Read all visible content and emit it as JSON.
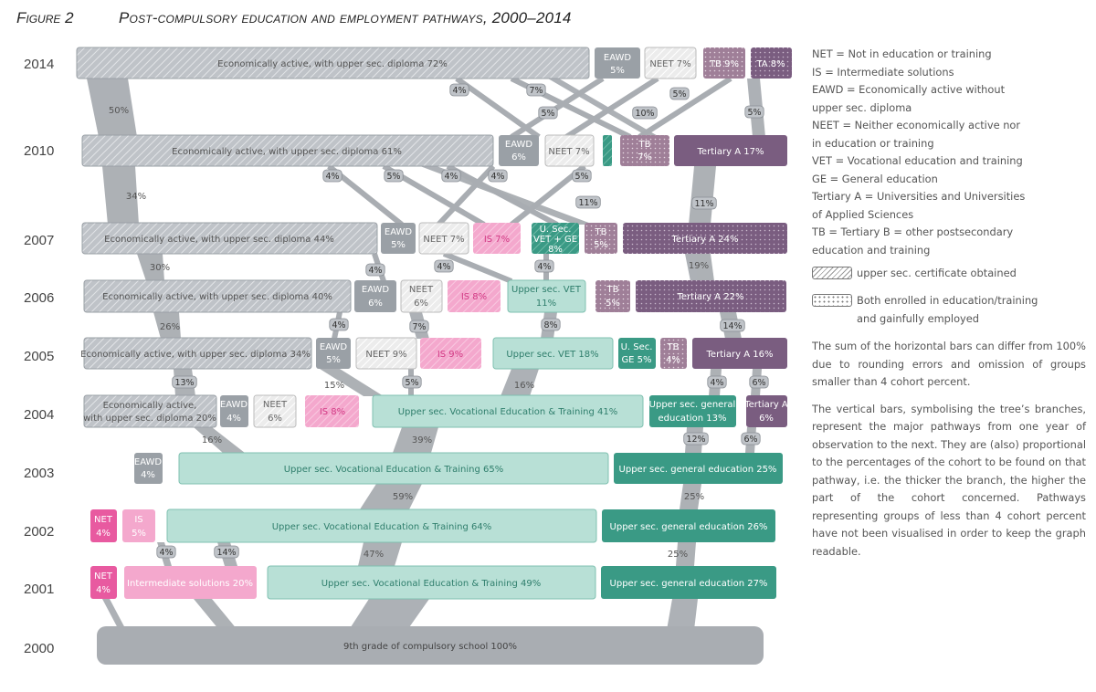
{
  "figure": {
    "label": "Figure 2",
    "title": "Post-compulsory education and employment pathways, 2000–2014"
  },
  "colors": {
    "grey_bar": "#b8bcc2",
    "grey_dark": "#9aa0a6",
    "branch": "#a9adb2",
    "neet": "#e7e7e7",
    "is_pink": "#f4a8cd",
    "net_pink": "#e85aa0",
    "vet_mint": "#b8e0d6",
    "ge_teal": "#3a9a85",
    "tertiary_purple": "#7a5d80",
    "tb_mauve": "#9f7f98"
  },
  "years": [
    "2014",
    "2010",
    "2007",
    "2006",
    "2005",
    "2004",
    "2003",
    "2002",
    "2001",
    "2000"
  ],
  "rows": {
    "y2014": [
      {
        "id": "ea14",
        "label": "Economically active, with upper sec. diploma 72%",
        "kind": "ea"
      },
      {
        "id": "eawd14",
        "label": "EAWD",
        "label2": "5%",
        "kind": "eawd"
      },
      {
        "id": "neet14",
        "label": "NEET 7%",
        "kind": "neet"
      },
      {
        "id": "tb14",
        "label": "TB 9%",
        "kind": "tb"
      },
      {
        "id": "ta14",
        "label": "TA 8%",
        "kind": "ta"
      }
    ],
    "y2010": [
      {
        "id": "ea10",
        "label": "Economically active, with upper sec. diploma 61%",
        "kind": "ea"
      },
      {
        "id": "eawd10",
        "label": "EAWD",
        "label2": "6%",
        "kind": "eawd"
      },
      {
        "id": "neet10",
        "label": "NEET 7%",
        "kind": "neet"
      },
      {
        "id": "small10",
        "label": "",
        "kind": "mint-hatch"
      },
      {
        "id": "tb10",
        "label": "TB",
        "label2": "7%",
        "kind": "tb"
      },
      {
        "id": "ta10",
        "label": "Tertiary A 17%",
        "kind": "ta"
      }
    ],
    "y2007": [
      {
        "id": "ea07",
        "label": "Economically active, with upper sec. diploma 44%",
        "kind": "ea"
      },
      {
        "id": "eawd07",
        "label": "EAWD",
        "label2": "5%",
        "kind": "eawd"
      },
      {
        "id": "neet07",
        "label": "NEET 7%",
        "kind": "neet"
      },
      {
        "id": "is07",
        "label": "IS 7%",
        "kind": "is"
      },
      {
        "id": "usec07",
        "label": "U. Sec.",
        "label2": "VET + GE",
        "label3": "8%",
        "kind": "ge-hatch"
      },
      {
        "id": "tb07",
        "label": "TB",
        "label2": "5%",
        "kind": "tb"
      },
      {
        "id": "ta07",
        "label": "Tertiary A 24%",
        "kind": "ta"
      }
    ],
    "y2006": [
      {
        "id": "ea06",
        "label": "Economically active, with upper sec. diploma 40%",
        "kind": "ea"
      },
      {
        "id": "eawd06",
        "label": "EAWD",
        "label2": "6%",
        "kind": "eawd"
      },
      {
        "id": "neet06",
        "label": "NEET",
        "label2": "6%",
        "kind": "neet"
      },
      {
        "id": "is06",
        "label": "IS 8%",
        "kind": "is"
      },
      {
        "id": "vet06",
        "label": "Upper sec. VET",
        "label2": "11%",
        "kind": "vet"
      },
      {
        "id": "tb06",
        "label": "TB",
        "label2": "5%",
        "kind": "tb"
      },
      {
        "id": "ta06",
        "label": "Tertiary A 22%",
        "kind": "ta"
      }
    ],
    "y2005": [
      {
        "id": "ea05",
        "label": "Economically active, with upper sec. diploma 34%",
        "kind": "ea"
      },
      {
        "id": "eawd05",
        "label": "EAWD",
        "label2": "5%",
        "kind": "eawd"
      },
      {
        "id": "neet05",
        "label": "NEET 9%",
        "kind": "neet"
      },
      {
        "id": "is05",
        "label": "IS 9%",
        "kind": "is"
      },
      {
        "id": "vet05",
        "label": "Upper sec. VET 18%",
        "kind": "vet"
      },
      {
        "id": "ge05",
        "label": "U. Sec.",
        "label2": "GE 5%",
        "kind": "ge"
      },
      {
        "id": "tb05",
        "label": "TB",
        "label2": "4%",
        "kind": "tb"
      },
      {
        "id": "ta05",
        "label": "Tertiary A 16%",
        "kind": "ta"
      }
    ],
    "y2004": [
      {
        "id": "ea04",
        "label": "Economically active,",
        "label2": "with upper sec. diploma 20%",
        "kind": "ea"
      },
      {
        "id": "eawd04",
        "label": "EAWD",
        "label2": "4%",
        "kind": "eawd"
      },
      {
        "id": "neet04",
        "label": "NEET",
        "label2": "6%",
        "kind": "neet"
      },
      {
        "id": "is04",
        "label": "IS 8%",
        "kind": "is"
      },
      {
        "id": "vet04",
        "label": "Upper sec. Vocational Education & Training 41%",
        "kind": "vet"
      },
      {
        "id": "ge04",
        "label": "Upper sec. general",
        "label2": "education 13%",
        "kind": "ge"
      },
      {
        "id": "ta04",
        "label": "Tertiary A",
        "label2": "6%",
        "kind": "ta"
      }
    ],
    "y2003": [
      {
        "id": "eawd03",
        "label": "EAWD",
        "label2": "4%",
        "kind": "eawd"
      },
      {
        "id": "vet03",
        "label": "Upper sec. Vocational Education & Training 65%",
        "kind": "vet"
      },
      {
        "id": "ge03",
        "label": "Upper sec. general education 25%",
        "kind": "ge"
      }
    ],
    "y2002": [
      {
        "id": "net02",
        "label": "NET",
        "label2": "4%",
        "kind": "net"
      },
      {
        "id": "is02",
        "label": "IS",
        "label2": "5%",
        "kind": "is"
      },
      {
        "id": "vet02",
        "label": "Upper sec. Vocational Education & Training 64%",
        "kind": "vet"
      },
      {
        "id": "ge02",
        "label": "Upper sec. general education 26%",
        "kind": "ge"
      }
    ],
    "y2001": [
      {
        "id": "net01",
        "label": "NET",
        "label2": "4%",
        "kind": "net"
      },
      {
        "id": "is01",
        "label": "Intermediate solutions 20%",
        "kind": "is"
      },
      {
        "id": "vet01",
        "label": "Upper sec. Vocational Education & Training 49%",
        "kind": "vet"
      },
      {
        "id": "ge01",
        "label": "Upper sec. general education 27%",
        "kind": "ge"
      }
    ],
    "y2000": [
      {
        "id": "base00",
        "label": "9th grade of compulsory school 100%",
        "kind": "base"
      }
    ]
  },
  "flow_labels": [
    {
      "id": "f50",
      "text": "50%",
      "boxed": false
    },
    {
      "id": "f14a",
      "text": "4%",
      "boxed": true
    },
    {
      "id": "f14b",
      "text": "7%",
      "boxed": true
    },
    {
      "id": "f14c",
      "text": "5%",
      "boxed": true
    },
    {
      "id": "f14d",
      "text": "5%",
      "boxed": true
    },
    {
      "id": "f14e",
      "text": "10%",
      "boxed": true
    },
    {
      "id": "f14f",
      "text": "5%",
      "boxed": true
    },
    {
      "id": "f34",
      "text": "34%",
      "boxed": false
    },
    {
      "id": "f10a",
      "text": "4%",
      "boxed": true
    },
    {
      "id": "f10b",
      "text": "5%",
      "boxed": true
    },
    {
      "id": "f10c",
      "text": "4%",
      "boxed": true
    },
    {
      "id": "f10d",
      "text": "4%",
      "boxed": true
    },
    {
      "id": "f10e",
      "text": "5%",
      "boxed": true
    },
    {
      "id": "f10f",
      "text": "11%",
      "boxed": true
    },
    {
      "id": "f10g",
      "text": "11%",
      "boxed": true
    },
    {
      "id": "f30",
      "text": "30%",
      "boxed": false
    },
    {
      "id": "f07a",
      "text": "4%",
      "boxed": true
    },
    {
      "id": "f07b",
      "text": "4%",
      "boxed": true
    },
    {
      "id": "f07c",
      "text": "4%",
      "boxed": true
    },
    {
      "id": "f19",
      "text": "19%",
      "boxed": false
    },
    {
      "id": "f26",
      "text": "26%",
      "boxed": false
    },
    {
      "id": "f06a",
      "text": "4%",
      "boxed": true
    },
    {
      "id": "f06b",
      "text": "7%",
      "boxed": true
    },
    {
      "id": "f06c",
      "text": "8%",
      "boxed": true
    },
    {
      "id": "f06d",
      "text": "14%",
      "boxed": true
    },
    {
      "id": "f13",
      "text": "13%",
      "boxed": true
    },
    {
      "id": "f15",
      "text": "15%",
      "boxed": false
    },
    {
      "id": "f05a",
      "text": "5%",
      "boxed": true
    },
    {
      "id": "f16b",
      "text": "16%",
      "boxed": false
    },
    {
      "id": "f05b",
      "text": "4%",
      "boxed": true
    },
    {
      "id": "f05c",
      "text": "6%",
      "boxed": true
    },
    {
      "id": "f16",
      "text": "16%",
      "boxed": false
    },
    {
      "id": "f39",
      "text": "39%",
      "boxed": false
    },
    {
      "id": "f12",
      "text": "12%",
      "boxed": true
    },
    {
      "id": "f06e",
      "text": "6%",
      "boxed": true
    },
    {
      "id": "f59",
      "text": "59%",
      "boxed": false
    },
    {
      "id": "f25a",
      "text": "25%",
      "boxed": false
    },
    {
      "id": "f4b",
      "text": "4%",
      "boxed": true
    },
    {
      "id": "f14g",
      "text": "14%",
      "boxed": true
    },
    {
      "id": "f47",
      "text": "47%",
      "boxed": false
    },
    {
      "id": "f25b",
      "text": "25%",
      "boxed": false
    }
  ],
  "legend": {
    "abbreviations": [
      "NET = Not in education or training",
      "IS = Intermediate solutions",
      "EAWD = Economically active without",
      "upper sec. diploma",
      "NEET = Neither economically active nor",
      "in education or training",
      "VET = Vocational education and training",
      "GE = General education",
      "Tertiary A = Universities and Universities",
      "of Applied Sciences",
      "TB = Tertiary B = other postsecondary",
      "education and training"
    ],
    "key_hatch": "upper sec. certificate obtained",
    "key_dots_1": "Both enrolled in education/training",
    "key_dots_2": "and gainfully employed",
    "note_1": "The sum of the horizontal bars can differ from 100% due to rounding errors and omission of groups smaller than 4 cohort percent.",
    "note_2": "The vertical bars, symbolising the tree’s branches, represent the major pathways from one year of observation to the next. They are (also) proportional to the percentages of the cohort to be found on that pathway, i.e. the thicker the branch, the higher the part of the cohort concerned. Pathways representing groups of less than 4 cohort percent have not been visualised in order to keep the graph readable."
  }
}
